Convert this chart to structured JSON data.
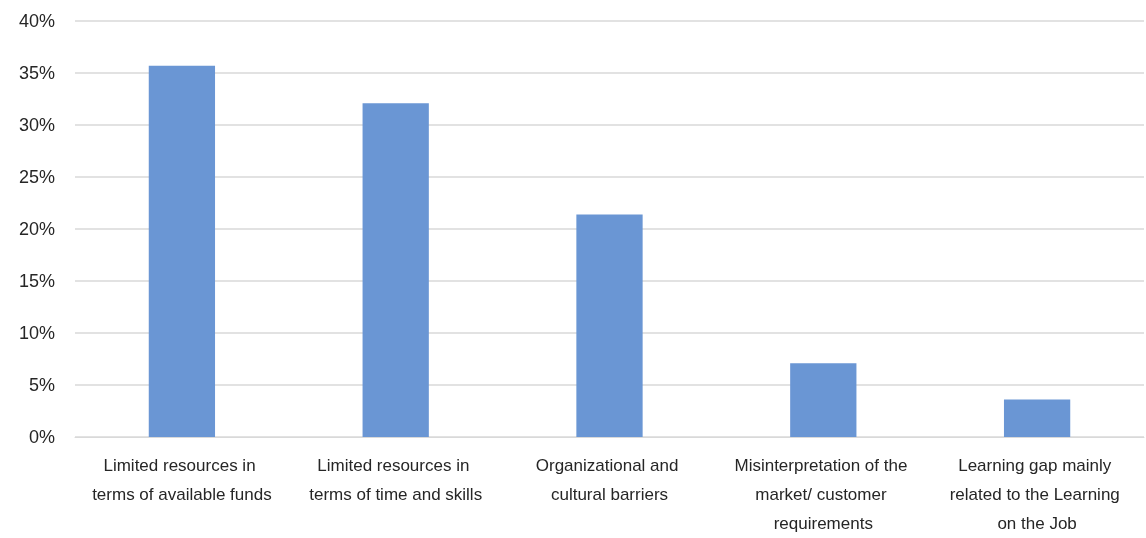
{
  "chart_data": {
    "type": "bar",
    "categories": [
      "Limited resources in terms of available funds",
      "Limited resources in terms of time and skills",
      "Organizational and cultural barriers",
      "Misinterpretation of the market/ customer requirements",
      "Learning gap mainly related to the Learning on the Job"
    ],
    "values": [
      35.7,
      32.1,
      21.4,
      7.1,
      3.6
    ],
    "color": "#6a96d4",
    "ylim": [
      0,
      40
    ],
    "yticks": [
      {
        "value": 0,
        "label": "0%"
      },
      {
        "value": 5,
        "label": "5%"
      },
      {
        "value": 10,
        "label": "10%"
      },
      {
        "value": 15,
        "label": "15%"
      },
      {
        "value": 20,
        "label": "20%"
      },
      {
        "value": 25,
        "label": "25%"
      },
      {
        "value": 30,
        "label": "30%"
      },
      {
        "value": 35,
        "label": "35%"
      },
      {
        "value": 40,
        "label": "40%"
      }
    ],
    "grid": "y"
  }
}
